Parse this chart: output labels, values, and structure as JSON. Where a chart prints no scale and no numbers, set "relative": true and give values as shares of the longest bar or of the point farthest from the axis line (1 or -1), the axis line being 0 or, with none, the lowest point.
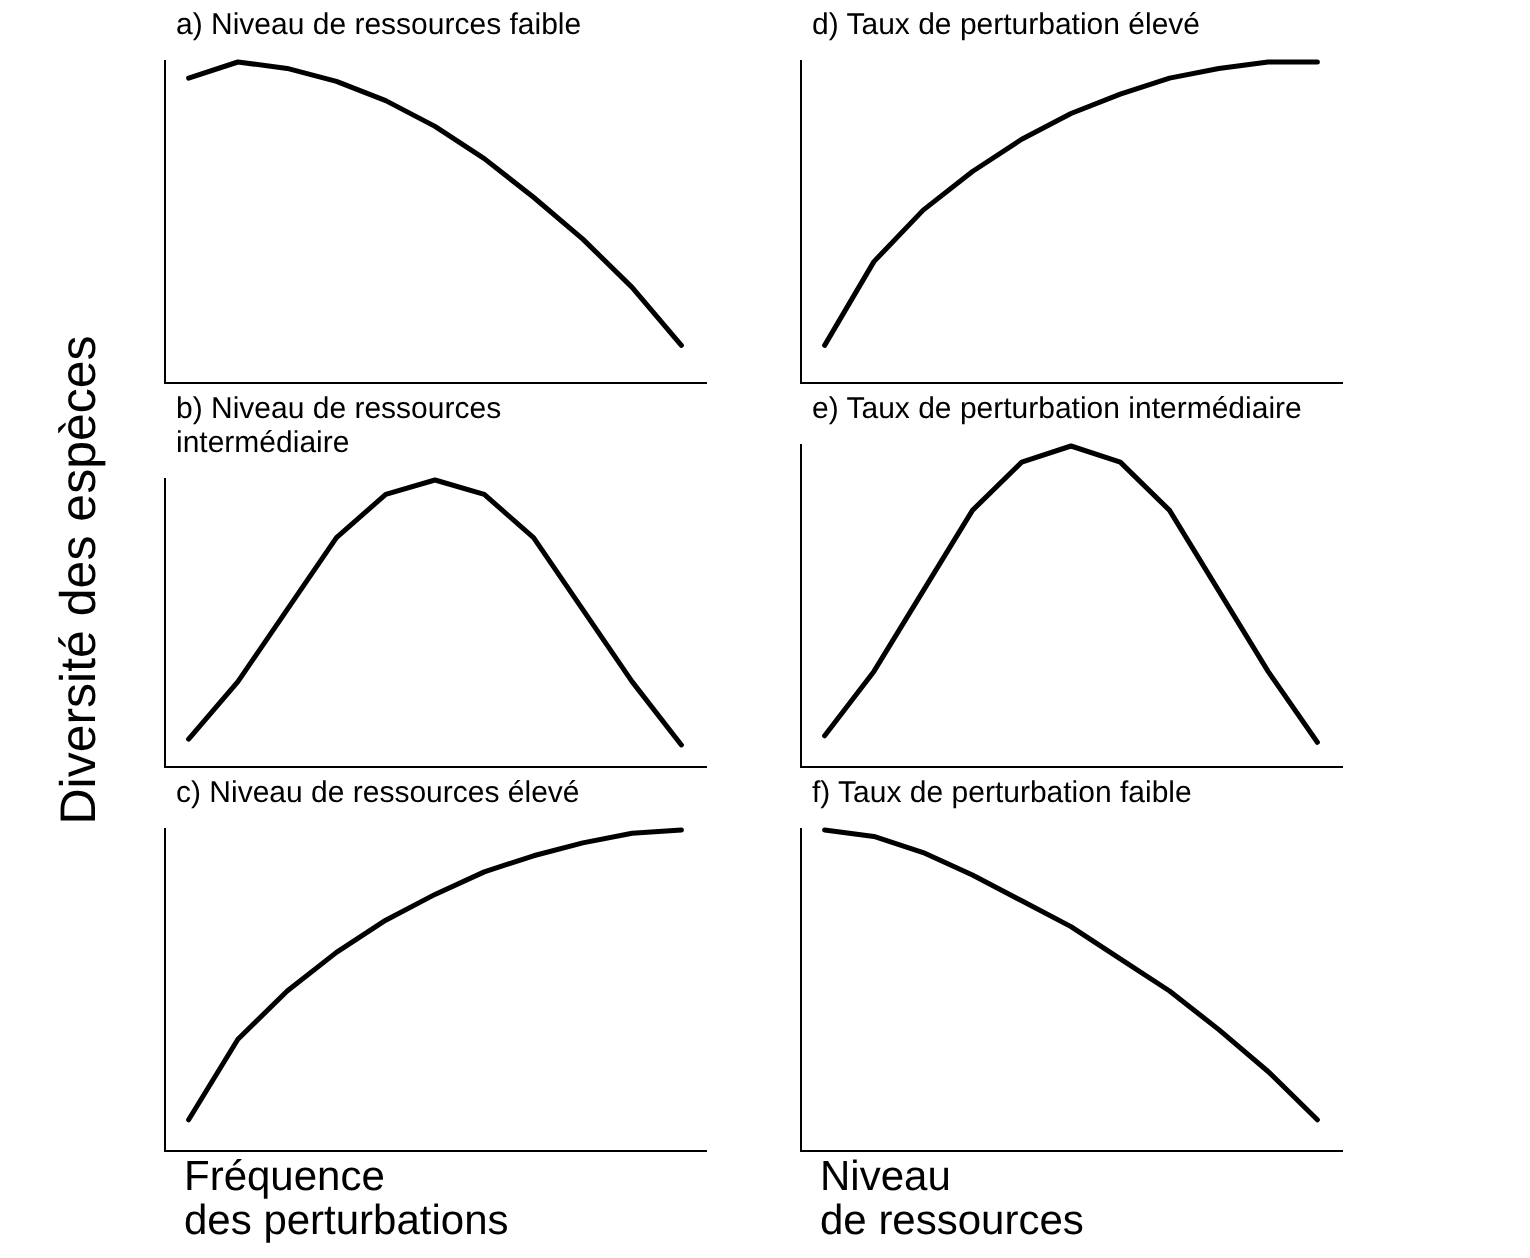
{
  "chart_data": [
    {
      "type": "line",
      "title": "a) Niveau de ressources faible",
      "ylabel": "Diversité des espèces",
      "relative": true,
      "marker": "none",
      "line_style": "solid",
      "categories": [
        null,
        null,
        null,
        null,
        null,
        null,
        null,
        null,
        null,
        null,
        null
      ],
      "series": [
        {
          "color": "#000000",
          "values": [
            0.95,
            1,
            0.98,
            0.94,
            0.88,
            0.8,
            0.7,
            0.58,
            0.45,
            0.3,
            0.12
          ]
        }
      ]
    },
    {
      "type": "line",
      "title": "d) Taux de perturbation élevé",
      "relative": true,
      "marker": "none",
      "line_style": "solid",
      "categories": [
        null,
        null,
        null,
        null,
        null,
        null,
        null,
        null,
        null,
        null,
        null
      ],
      "series": [
        {
          "color": "#000000",
          "values": [
            0.12,
            0.38,
            0.54,
            0.66,
            0.76,
            0.84,
            0.9,
            0.95,
            0.98,
            1,
            1
          ]
        }
      ]
    },
    {
      "type": "line",
      "title": "b) Niveau de ressources\nintermédiaire",
      "relative": true,
      "marker": "none",
      "line_style": "solid",
      "categories": [
        null,
        null,
        null,
        null,
        null,
        null,
        null,
        null,
        null,
        null,
        null
      ],
      "series": [
        {
          "color": "#000000",
          "values": [
            0.1,
            0.3,
            0.55,
            0.8,
            0.95,
            1,
            0.95,
            0.8,
            0.55,
            0.3,
            0.08
          ]
        }
      ]
    },
    {
      "type": "line",
      "title": "e) Taux de perturbation intermédiaire",
      "relative": true,
      "marker": "none",
      "line_style": "solid",
      "categories": [
        null,
        null,
        null,
        null,
        null,
        null,
        null,
        null,
        null,
        null,
        null
      ],
      "series": [
        {
          "color": "#000000",
          "values": [
            0.1,
            0.3,
            0.55,
            0.8,
            0.95,
            1,
            0.95,
            0.8,
            0.55,
            0.3,
            0.08
          ]
        }
      ]
    },
    {
      "type": "line",
      "title": "c) Niveau de ressources élevé",
      "xlabel": "Fréquence\ndes perturbations",
      "relative": true,
      "marker": "none",
      "line_style": "solid",
      "categories": [
        null,
        null,
        null,
        null,
        null,
        null,
        null,
        null,
        null,
        null,
        null
      ],
      "series": [
        {
          "color": "#000000",
          "values": [
            0.1,
            0.35,
            0.5,
            0.62,
            0.72,
            0.8,
            0.87,
            0.92,
            0.96,
            0.99,
            1
          ]
        }
      ]
    },
    {
      "type": "line",
      "title": "f) Taux de perturbation faible",
      "xlabel": "Niveau\nde ressources",
      "relative": true,
      "marker": "none",
      "line_style": "solid",
      "categories": [
        null,
        null,
        null,
        null,
        null,
        null,
        null,
        null,
        null,
        null,
        null
      ],
      "series": [
        {
          "color": "#000000",
          "values": [
            1,
            0.98,
            0.93,
            0.86,
            0.78,
            0.7,
            0.6,
            0.5,
            0.38,
            0.25,
            0.1
          ]
        }
      ]
    }
  ]
}
